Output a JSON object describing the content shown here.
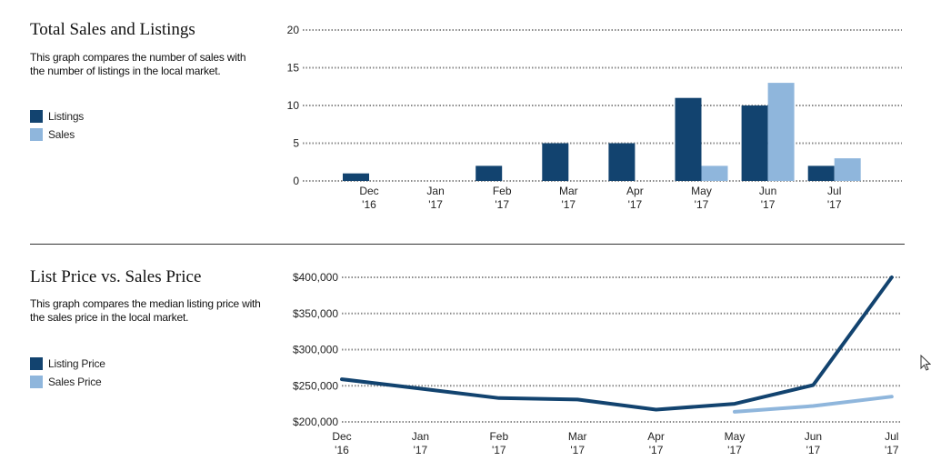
{
  "colors": {
    "dark": "#12436f",
    "light": "#8fb6dc",
    "grid": "#8a8a8a"
  },
  "sales_listings": {
    "title": "Total Sales and Listings",
    "description": "This graph compares the number of sales with the number of listings in the local market.",
    "legend": [
      {
        "label": "Listings",
        "color": "#12436f"
      },
      {
        "label": "Sales",
        "color": "#8fb6dc"
      }
    ]
  },
  "price": {
    "title": "List Price vs. Sales Price",
    "description": "This graph compares the median listing price with the sales price in the local market.",
    "legend": [
      {
        "label": "Listing Price",
        "color": "#12436f"
      },
      {
        "label": "Sales Price",
        "color": "#8fb6dc"
      }
    ]
  },
  "chart_data": [
    {
      "type": "bar",
      "title": "Total Sales and Listings",
      "categories": [
        [
          "Dec",
          "'16"
        ],
        [
          "Jan",
          "'17"
        ],
        [
          "Feb",
          "'17"
        ],
        [
          "Mar",
          "'17"
        ],
        [
          "Apr",
          "'17"
        ],
        [
          "May",
          "'17"
        ],
        [
          "Jun",
          "'17"
        ],
        [
          "Jul",
          "'17"
        ]
      ],
      "series": [
        {
          "name": "Listings",
          "values": [
            1,
            0,
            2,
            5,
            5,
            11,
            10,
            2
          ]
        },
        {
          "name": "Sales",
          "values": [
            0,
            0,
            0,
            0,
            0,
            2,
            13,
            3
          ]
        }
      ],
      "ylim": [
        0,
        20
      ],
      "yticks": [
        0,
        5,
        10,
        15,
        20
      ],
      "ytick_labels": [
        "0",
        "5",
        "10",
        "15",
        "20"
      ],
      "grid": true,
      "legend": "left"
    },
    {
      "type": "line",
      "title": "List Price vs. Sales Price",
      "categories": [
        [
          "Dec",
          "'16"
        ],
        [
          "Jan",
          "'17"
        ],
        [
          "Feb",
          "'17"
        ],
        [
          "Mar",
          "'17"
        ],
        [
          "Apr",
          "'17"
        ],
        [
          "May",
          "'17"
        ],
        [
          "Jun",
          "'17"
        ],
        [
          "Jul",
          "'17"
        ]
      ],
      "series": [
        {
          "name": "Listing Price",
          "values": [
            259000,
            246000,
            233000,
            231000,
            217000,
            225000,
            251000,
            400000
          ]
        },
        {
          "name": "Sales Price",
          "values": [
            null,
            null,
            null,
            null,
            null,
            214000,
            222000,
            235000
          ]
        }
      ],
      "ylim": [
        200000,
        400000
      ],
      "yticks": [
        200000,
        250000,
        300000,
        350000,
        400000
      ],
      "ytick_labels": [
        "$200,000",
        "$250,000",
        "$300,000",
        "$350,000",
        "$400,000"
      ],
      "grid": true,
      "legend": "left"
    }
  ]
}
